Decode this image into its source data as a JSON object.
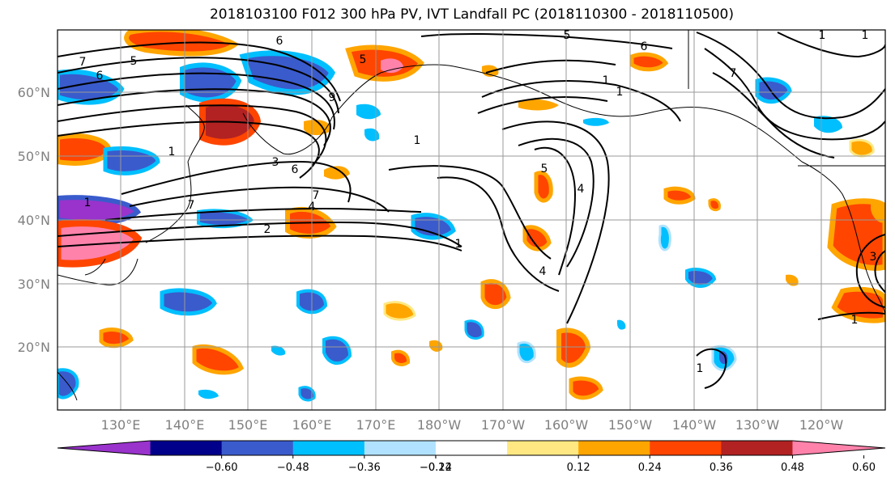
{
  "title": "2018103100 F012 300 hPa PV, IVT Landfall PC (2018110300 - 2018110500)",
  "latitude_labels": [
    "60°N",
    "50°N",
    "40°N",
    "30°N",
    "20°N"
  ],
  "longitude_labels": [
    "130°E",
    "140°E",
    "150°E",
    "160°E",
    "170°E",
    "180°W",
    "170°W",
    "160°W",
    "150°W",
    "140°W",
    "130°W",
    "120°W"
  ],
  "colorbar": {
    "colors": [
      "#9933cc",
      "#00008b",
      "#3a5bcc",
      "#00bfff",
      "#b0e2ff",
      "#ffffff",
      "#ffe882",
      "#ffa500",
      "#ff4500",
      "#b22222",
      "#ff82ab"
    ],
    "tick_labels": [
      "−0.60",
      "−0.48",
      "−0.36",
      "−0.24",
      "−0.12",
      "0.12",
      "0.24",
      "0.36",
      "0.48",
      "0.60"
    ]
  },
  "contour_labels": [
    "7",
    "6",
    "5",
    "1",
    "6",
    "3",
    "9",
    "5",
    "7",
    "6",
    "1",
    "7",
    "4",
    "2",
    "1",
    "5",
    "4",
    "4",
    "1",
    "5",
    "1",
    "1",
    "1",
    "7",
    "1",
    "6",
    "1",
    "1",
    "3"
  ]
}
